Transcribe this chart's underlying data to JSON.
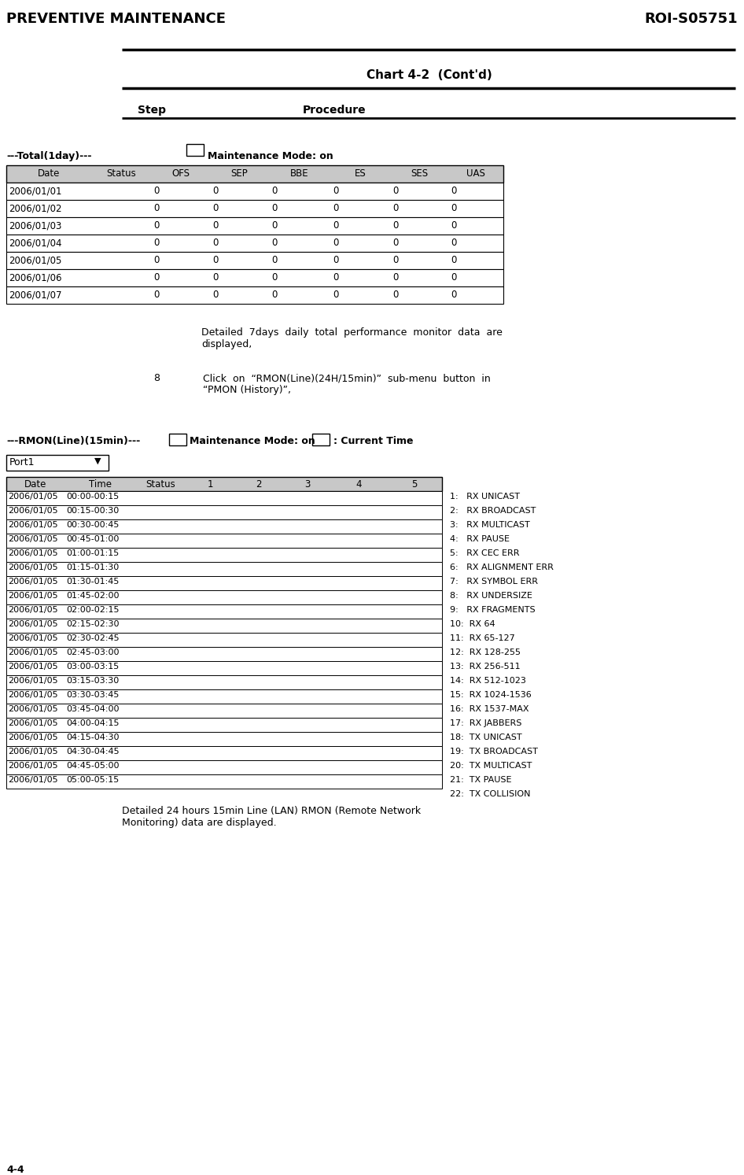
{
  "title_left": "PREVENTIVE MAINTENANCE",
  "title_right": "ROI-S05751",
  "chart_title": "Chart 4-2  (Cont'd)",
  "step_label": "Step",
  "procedure_label": "Procedure",
  "total_label": "---Total(1day)---",
  "maintenance_label": "Maintenance Mode: on",
  "table1_headers": [
    "Date",
    "Status",
    "OFS",
    "SEP",
    "BBE",
    "ES",
    "SES",
    "UAS"
  ],
  "table1_rows": [
    [
      "2006/01/01",
      "",
      "0",
      "0",
      "0",
      "0",
      "0",
      "0"
    ],
    [
      "2006/01/02",
      "",
      "0",
      "0",
      "0",
      "0",
      "0",
      "0"
    ],
    [
      "2006/01/03",
      "",
      "0",
      "0",
      "0",
      "0",
      "0",
      "0"
    ],
    [
      "2006/01/04",
      "",
      "0",
      "0",
      "0",
      "0",
      "0",
      "0"
    ],
    [
      "2006/01/05",
      "",
      "0",
      "0",
      "0",
      "0",
      "0",
      "0"
    ],
    [
      "2006/01/06",
      "",
      "0",
      "0",
      "0",
      "0",
      "0",
      "0"
    ],
    [
      "2006/01/07",
      "",
      "0",
      "0",
      "0",
      "0",
      "0",
      "0"
    ]
  ],
  "step8_num": "8",
  "rmon_label": "---RMON(Line)(15min)---",
  "rmon_maintenance": "Maintenance Mode: on",
  "current_time_label": ": Current Time",
  "port_label": "Port1",
  "table2_headers": [
    "Date",
    "Time",
    "Status",
    "1",
    "2",
    "3",
    "4",
    "5"
  ],
  "table2_rows": [
    [
      "2006/01/05",
      "00:00-00:15"
    ],
    [
      "2006/01/05",
      "00:15-00:30"
    ],
    [
      "2006/01/05",
      "00:30-00:45"
    ],
    [
      "2006/01/05",
      "00:45-01:00"
    ],
    [
      "2006/01/05",
      "01:00-01:15"
    ],
    [
      "2006/01/05",
      "01:15-01:30"
    ],
    [
      "2006/01/05",
      "01:30-01:45"
    ],
    [
      "2006/01/05",
      "01:45-02:00"
    ],
    [
      "2006/01/05",
      "02:00-02:15"
    ],
    [
      "2006/01/05",
      "02:15-02:30"
    ],
    [
      "2006/01/05",
      "02:30-02:45"
    ],
    [
      "2006/01/05",
      "02:45-03:00"
    ],
    [
      "2006/01/05",
      "03:00-03:15"
    ],
    [
      "2006/01/05",
      "03:15-03:30"
    ],
    [
      "2006/01/05",
      "03:30-03:45"
    ],
    [
      "2006/01/05",
      "03:45-04:00"
    ],
    [
      "2006/01/05",
      "04:00-04:15"
    ],
    [
      "2006/01/05",
      "04:15-04:30"
    ],
    [
      "2006/01/05",
      "04:30-04:45"
    ],
    [
      "2006/01/05",
      "04:45-05:00"
    ],
    [
      "2006/01/05",
      "05:00-05:15"
    ]
  ],
  "legend_items": [
    "1:   RX UNICAST",
    "2:   RX BROADCAST",
    "3:   RX MULTICAST",
    "4:   RX PAUSE",
    "5:   RX CEC ERR",
    "6:   RX ALIGNMENT ERR",
    "7:   RX SYMBOL ERR",
    "8:   RX UNDERSIZE",
    "9:   RX FRAGMENTS",
    "10:  RX 64",
    "11:  RX 65-127",
    "12:  RX 128-255",
    "13:  RX 256-511",
    "14:  RX 512-1023",
    "15:  RX 1024-1536",
    "16:  RX 1537-MAX",
    "17:  RX JABBERS",
    "18:  TX UNICAST",
    "19:  TX BROADCAST",
    "20:  TX MULTICAST",
    "21:  TX PAUSE",
    "22:  TX COLLISION"
  ],
  "footer_left": "4-4",
  "bg_color": "#ffffff"
}
